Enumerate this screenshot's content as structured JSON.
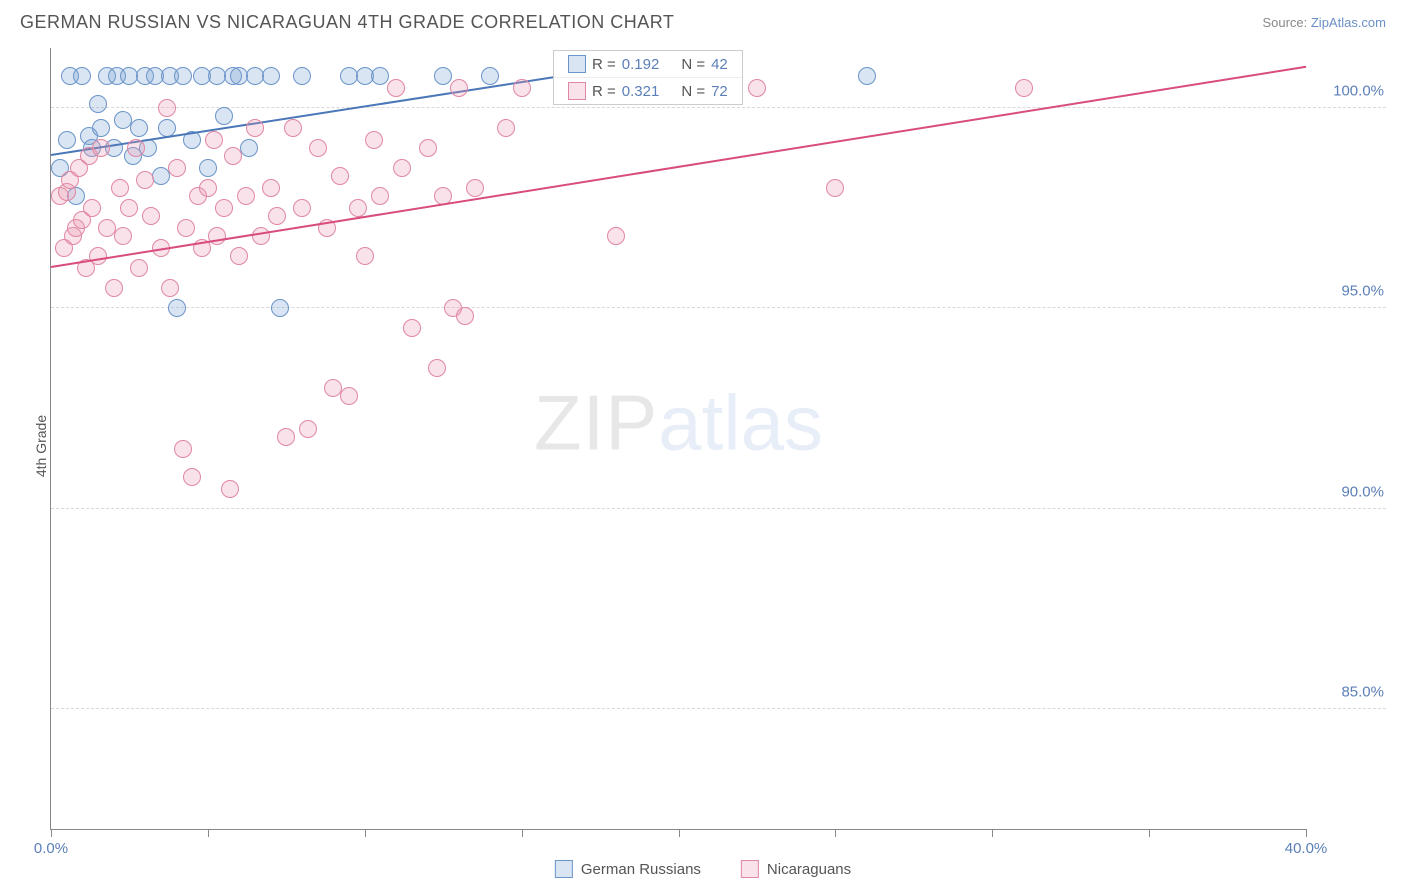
{
  "header": {
    "title": "GERMAN RUSSIAN VS NICARAGUAN 4TH GRADE CORRELATION CHART",
    "source_prefix": "Source: ",
    "source_link": "ZipAtlas.com"
  },
  "chart": {
    "type": "scatter",
    "ylabel": "4th Grade",
    "xlim": [
      0,
      40
    ],
    "ylim": [
      82,
      101.5
    ],
    "x_ticks": [
      0,
      5,
      10,
      15,
      20,
      25,
      30,
      35,
      40
    ],
    "x_tick_labels": {
      "0": "0.0%",
      "40": "40.0%"
    },
    "y_ticks": [
      85,
      90,
      95,
      100
    ],
    "y_tick_labels": [
      "85.0%",
      "90.0%",
      "95.0%",
      "100.0%"
    ],
    "background_color": "#ffffff",
    "grid_color": "#d8d8d8",
    "axis_color": "#888888",
    "marker_radius": 9,
    "marker_border_width": 1.2,
    "series": [
      {
        "name": "German Russians",
        "label": "German Russians",
        "fill": "rgba(120,160,210,0.28)",
        "stroke": "#6b94c9",
        "R": "0.192",
        "N": "42",
        "trend": {
          "x1": 0,
          "y1": 98.8,
          "x2": 16.5,
          "y2": 100.8,
          "color": "#4a77b8"
        },
        "points": [
          [
            0.3,
            98.5
          ],
          [
            0.5,
            99.2
          ],
          [
            0.6,
            100.8
          ],
          [
            0.8,
            97.8
          ],
          [
            1.0,
            100.8
          ],
          [
            1.2,
            99.3
          ],
          [
            1.3,
            99.0
          ],
          [
            1.5,
            100.1
          ],
          [
            1.6,
            99.5
          ],
          [
            1.8,
            100.8
          ],
          [
            2.0,
            99.0
          ],
          [
            2.1,
            100.8
          ],
          [
            2.3,
            99.7
          ],
          [
            2.5,
            100.8
          ],
          [
            2.6,
            98.8
          ],
          [
            2.8,
            99.5
          ],
          [
            3.0,
            100.8
          ],
          [
            3.1,
            99.0
          ],
          [
            3.3,
            100.8
          ],
          [
            3.5,
            98.3
          ],
          [
            3.7,
            99.5
          ],
          [
            3.8,
            100.8
          ],
          [
            4.0,
            95.0
          ],
          [
            4.2,
            100.8
          ],
          [
            4.5,
            99.2
          ],
          [
            4.8,
            100.8
          ],
          [
            5.0,
            98.5
          ],
          [
            5.3,
            100.8
          ],
          [
            5.5,
            99.8
          ],
          [
            5.8,
            100.8
          ],
          [
            6.0,
            100.8
          ],
          [
            6.3,
            99.0
          ],
          [
            6.5,
            100.8
          ],
          [
            7.0,
            100.8
          ],
          [
            7.3,
            95.0
          ],
          [
            8.0,
            100.8
          ],
          [
            9.5,
            100.8
          ],
          [
            10.0,
            100.8
          ],
          [
            10.5,
            100.8
          ],
          [
            12.5,
            100.8
          ],
          [
            14.0,
            100.8
          ],
          [
            26.0,
            100.8
          ]
        ]
      },
      {
        "name": "Nicaraguans",
        "label": "Nicaraguans",
        "fill": "rgba(235,150,175,0.28)",
        "stroke": "#e087a3",
        "R": "0.321",
        "N": "72",
        "trend": {
          "x1": 0,
          "y1": 96.0,
          "x2": 40,
          "y2": 101.0,
          "color": "#d84c7f"
        },
        "points": [
          [
            0.3,
            97.8
          ],
          [
            0.4,
            96.5
          ],
          [
            0.5,
            97.9
          ],
          [
            0.6,
            98.2
          ],
          [
            0.7,
            96.8
          ],
          [
            0.8,
            97.0
          ],
          [
            0.9,
            98.5
          ],
          [
            1.0,
            97.2
          ],
          [
            1.1,
            96.0
          ],
          [
            1.2,
            98.8
          ],
          [
            1.3,
            97.5
          ],
          [
            1.5,
            96.3
          ],
          [
            1.6,
            99.0
          ],
          [
            1.8,
            97.0
          ],
          [
            2.0,
            95.5
          ],
          [
            2.2,
            98.0
          ],
          [
            2.3,
            96.8
          ],
          [
            2.5,
            97.5
          ],
          [
            2.7,
            99.0
          ],
          [
            2.8,
            96.0
          ],
          [
            3.0,
            98.2
          ],
          [
            3.2,
            97.3
          ],
          [
            3.5,
            96.5
          ],
          [
            3.7,
            100.0
          ],
          [
            3.8,
            95.5
          ],
          [
            4.0,
            98.5
          ],
          [
            4.2,
            91.5
          ],
          [
            4.3,
            97.0
          ],
          [
            4.5,
            90.8
          ],
          [
            4.7,
            97.8
          ],
          [
            4.8,
            96.5
          ],
          [
            5.0,
            98.0
          ],
          [
            5.2,
            99.2
          ],
          [
            5.3,
            96.8
          ],
          [
            5.5,
            97.5
          ],
          [
            5.7,
            90.5
          ],
          [
            5.8,
            98.8
          ],
          [
            6.0,
            96.3
          ],
          [
            6.2,
            97.8
          ],
          [
            6.5,
            99.5
          ],
          [
            6.7,
            96.8
          ],
          [
            7.0,
            98.0
          ],
          [
            7.2,
            97.3
          ],
          [
            7.5,
            91.8
          ],
          [
            7.7,
            99.5
          ],
          [
            8.0,
            97.5
          ],
          [
            8.2,
            92.0
          ],
          [
            8.5,
            99.0
          ],
          [
            8.8,
            97.0
          ],
          [
            9.0,
            93.0
          ],
          [
            9.2,
            98.3
          ],
          [
            9.5,
            92.8
          ],
          [
            9.8,
            97.5
          ],
          [
            10.0,
            96.3
          ],
          [
            10.3,
            99.2
          ],
          [
            10.5,
            97.8
          ],
          [
            11.0,
            100.5
          ],
          [
            11.2,
            98.5
          ],
          [
            11.5,
            94.5
          ],
          [
            12.0,
            99.0
          ],
          [
            12.3,
            93.5
          ],
          [
            12.5,
            97.8
          ],
          [
            12.8,
            95.0
          ],
          [
            13.0,
            100.5
          ],
          [
            13.2,
            94.8
          ],
          [
            13.5,
            98.0
          ],
          [
            14.5,
            99.5
          ],
          [
            15.0,
            100.5
          ],
          [
            18.0,
            96.8
          ],
          [
            22.5,
            100.5
          ],
          [
            25.0,
            98.0
          ],
          [
            31.0,
            100.5
          ]
        ]
      }
    ],
    "stats_legend": {
      "R_label": "R =",
      "N_label": "N ="
    },
    "watermark": {
      "part1": "ZIP",
      "part2": "atlas"
    }
  }
}
